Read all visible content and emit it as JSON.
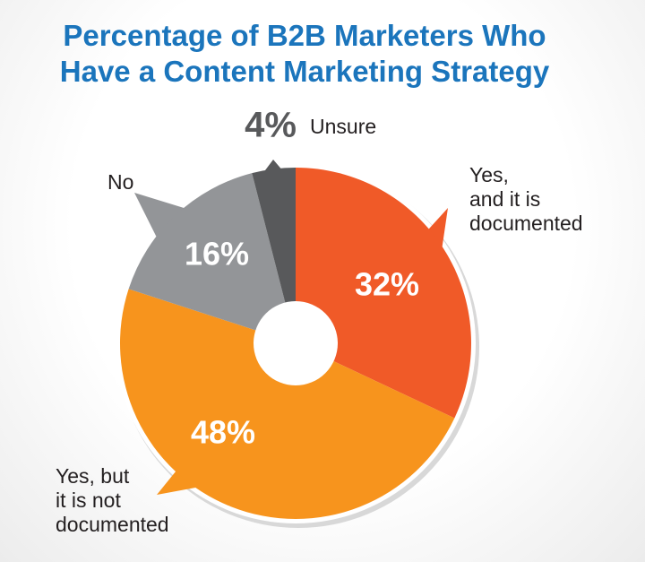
{
  "chart_data": {
    "type": "donut",
    "title": "Percentage of B2B Marketers Who Have a Content Marketing Strategy",
    "categories": [
      "Yes,\nand it is\ndocumented",
      "Yes, but\nit is not\ndocumented",
      "No",
      "Unsure"
    ],
    "values": [
      32,
      48,
      16,
      4
    ],
    "value_labels": [
      "32%",
      "48%",
      "16%",
      "4%"
    ],
    "colors": [
      "#f05a28",
      "#f7941d",
      "#939598",
      "#58595b"
    ]
  }
}
